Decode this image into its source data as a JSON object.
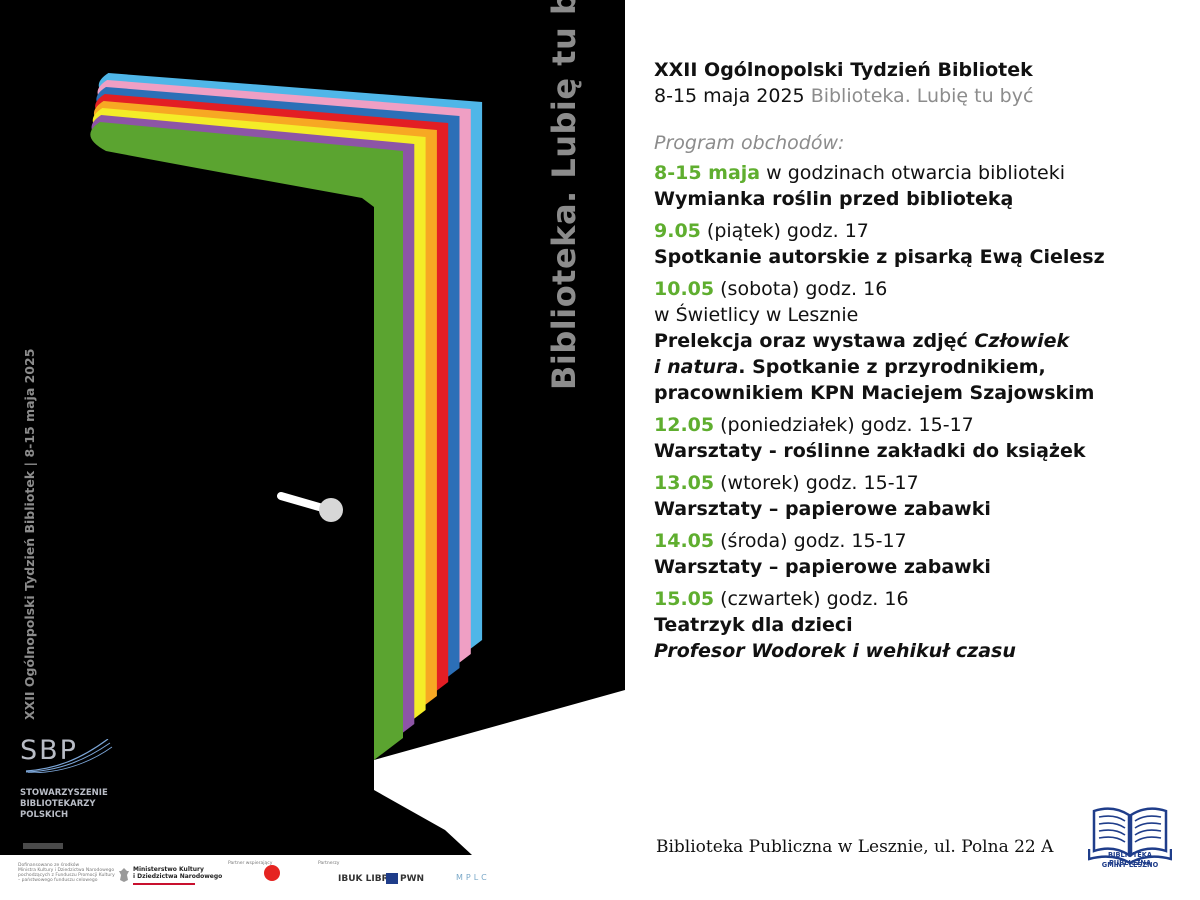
{
  "poster": {
    "vertical_title": "Biblioteka. Lubię tu być",
    "vertical_subtitle": "XXII Ogólnopolski Tydzień Bibliotek | 8-15 maja 2025",
    "sbp_abbrev": "SBP",
    "sbp_name": [
      "STOWARZYSZENIE",
      "BIBLIOTEKARZY",
      "POLSKICH"
    ],
    "stripe_colors": [
      "#5ba430",
      "#8d55a6",
      "#f4ec28",
      "#f7a823",
      "#e31e24",
      "#2c6fb7",
      "#ef9fc4",
      "#4fb6e8"
    ],
    "sponsors": {
      "organizer_text": [
        "Dofinansowano ze środków",
        "Ministra Kultury i Dziedzictwa Narodowego",
        "pochodzących z Funduszu Promocji Kultury",
        "– państwowego funduszu celowego"
      ],
      "ministry": [
        "Ministerstwo Kultury",
        "i Dziedzictwa Narodowego"
      ],
      "partner_label": "Partner wspierający",
      "partners_label": "Partnerzy",
      "ibuk": "IBUK LIBRA",
      "pwn": "PWN",
      "mplc": "MPLC"
    }
  },
  "program": {
    "title": "XXII Ogólnopolski Tydzień Bibliotek",
    "dates": "8-15 maja 2025",
    "slogan": "Biblioteka. Lubię tu być",
    "label": "Program obchodów:",
    "events": [
      {
        "date": "8-15 maja",
        "detail": " w godzinach otwarcia biblioteki",
        "title": "Wymianka roślin przed biblioteką"
      },
      {
        "date": "9.05",
        "detail": " (piątek) godz. 17",
        "title": "Spotkanie autorskie z pisarką Ewą Cielesz"
      },
      {
        "date": "10.05",
        "detail": " (sobota) godz. 16",
        "extra": "w Świetlicy w Lesznie",
        "title_parts": [
          "Prelekcja oraz wystawa zdjęć ",
          "Człowiek",
          "i natura",
          ". Spotkanie z przyrodnikiem,",
          "pracownikiem KPN Maciejem Szajowskim"
        ]
      },
      {
        "date": "12.05",
        "detail": " (poniedziałek) godz. 15-17",
        "title": "Warsztaty - roślinne zakładki do książek"
      },
      {
        "date": "13.05",
        "detail": " (wtorek) godz. 15-17",
        "title": "Warsztaty – papierowe zabawki"
      },
      {
        "date": "14.05",
        "detail": " (środa) godz. 15-17",
        "title": "Warsztaty – papierowe zabawki"
      },
      {
        "date": "15.05",
        "detail": " (czwartek) godz. 16",
        "title": "Teatrzyk dla dzieci",
        "subtitle": "Profesor Wodorek i wehikuł czasu"
      }
    ]
  },
  "footer": {
    "address": "Biblioteka Publiczna w Lesznie, ul. Polna 22 A",
    "logo_line1": "BIBLIOTEKA PUBLICZNA",
    "logo_line2": "GMINY LESZNO"
  },
  "colors": {
    "accent_green": "#5fae2f",
    "grey_text": "#8c8c8c",
    "logo_blue": "#1f3d8a"
  }
}
